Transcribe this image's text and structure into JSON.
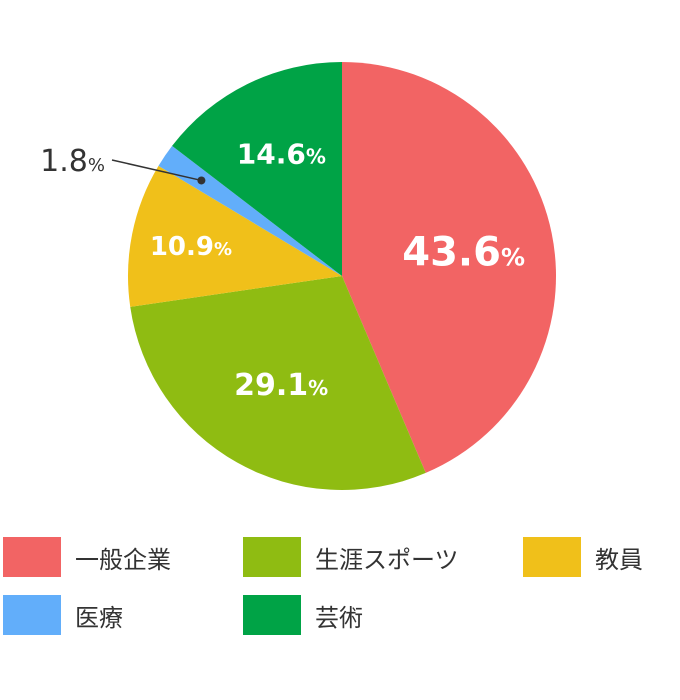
{
  "chart_data": {
    "type": "pie",
    "title": "",
    "categories": [
      "一般企業",
      "生涯スポーツ",
      "教員",
      "医療",
      "芸術"
    ],
    "values": [
      43.6,
      29.1,
      10.9,
      1.8,
      14.6
    ],
    "value_labels": [
      "43.6",
      "29.1",
      "10.9",
      "1.8",
      "14.6"
    ],
    "unit": "%",
    "colors": [
      "#f26464",
      "#8fbc12",
      "#f0c01a",
      "#62aefa",
      "#00a346"
    ],
    "start": "top",
    "direction": "clockwise",
    "legend_position": "bottom"
  }
}
